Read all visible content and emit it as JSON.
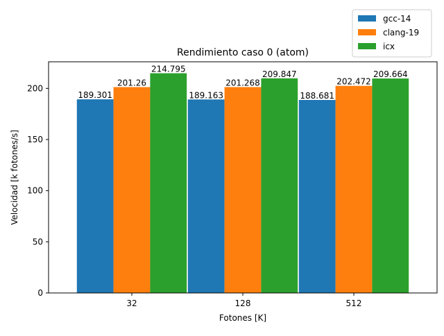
{
  "chart_data": {
    "type": "bar",
    "title": "Rendimiento caso 0 (atom)",
    "xlabel": "Fotones [K]",
    "ylabel": "Velocidad [k fotones/s]",
    "categories": [
      "32",
      "128",
      "512"
    ],
    "ylim": [
      0,
      226
    ],
    "yticks": [
      0,
      50,
      100,
      150,
      200
    ],
    "grid": false,
    "legend": "top-right, outside plot",
    "series": [
      {
        "name": "gcc-14",
        "color": "#1f77b4",
        "values": [
          189.301,
          189.163,
          188.681
        ],
        "labels": [
          "189.301",
          "189.163",
          "188.681"
        ]
      },
      {
        "name": "clang-19",
        "color": "#ff7f0e",
        "values": [
          201.26,
          201.268,
          202.472
        ],
        "labels": [
          "201.26",
          "201.268",
          "202.472"
        ]
      },
      {
        "name": "icx",
        "color": "#2ca02c",
        "values": [
          214.795,
          209.847,
          209.664
        ],
        "labels": [
          "214.795",
          "209.847",
          "209.664"
        ]
      }
    ]
  }
}
